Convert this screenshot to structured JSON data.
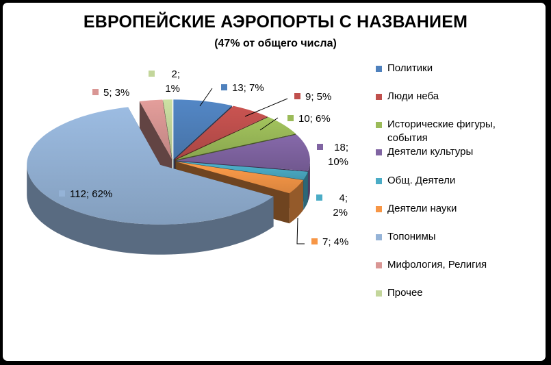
{
  "chart_data": {
    "type": "pie",
    "title": "ЕВРОПЕЙСКИЕ АЭРОПОРТЫ С НАЗВАНИЕМ",
    "subtitle": "(47% от общего числа)",
    "legend_position": "right",
    "slices": [
      {
        "label": "Политики",
        "value": 13,
        "percent": "7%",
        "data_label": "13; 7%",
        "color": "#4F81BD"
      },
      {
        "label": "Люди неба",
        "value": 9,
        "percent": "5%",
        "data_label": "9; 5%",
        "color": "#C0504D"
      },
      {
        "label": "Исторические фигуры, события",
        "value": 10,
        "percent": "6%",
        "data_label": "10; 6%",
        "color": "#9BBB59"
      },
      {
        "label": "Деятели культуры",
        "value": 18,
        "percent": "10%",
        "data_label": "18; 10%",
        "color": "#8064A2"
      },
      {
        "label": "Общ. Деятели",
        "value": 4,
        "percent": "2%",
        "data_label": "4; 2%",
        "color": "#4BACC6"
      },
      {
        "label": "Деятели науки",
        "value": 7,
        "percent": "4%",
        "data_label": "7; 4%",
        "color": "#F79646"
      },
      {
        "label": "Топонимы",
        "value": 112,
        "percent": "62%",
        "data_label": "112; 62%",
        "color": "#95B3D7"
      },
      {
        "label": "Мифология, Религия",
        "value": 5,
        "percent": "3%",
        "data_label": "5; 3%",
        "color": "#D99694"
      },
      {
        "label": "Прочее",
        "value": 2,
        "percent": "1%",
        "data_label": "2; 1%",
        "color": "#C3D69B"
      }
    ]
  }
}
